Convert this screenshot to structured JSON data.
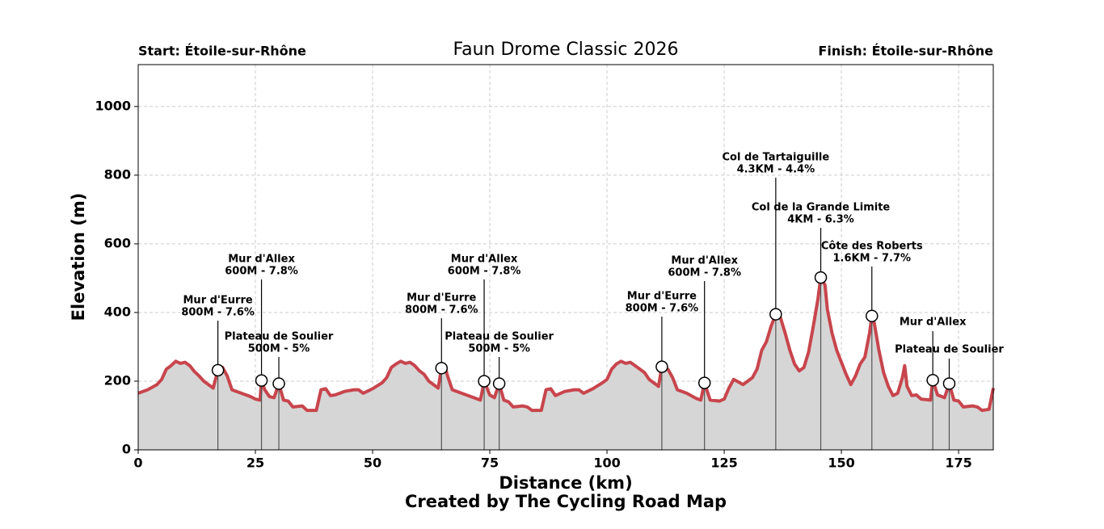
{
  "chart_data": {
    "type": "area",
    "title": "Faun Drome Classic 2026",
    "start_label": "Start: Étoile-sur-Rhône",
    "finish_label": "Finish: Étoile-sur-Rhône",
    "xlabel": "Distance (km)",
    "ylabel": "Elevation (m)",
    "footer": "Created by The Cycling Road Map",
    "color": "#c8454d",
    "fill_color": "#d6d6d6",
    "grid": true,
    "xlim": [
      0,
      182.4
    ],
    "ylim": [
      0,
      1122
    ],
    "xticks": [
      0,
      25,
      50,
      75,
      100,
      125,
      150,
      175
    ],
    "yticks": [
      0,
      200,
      400,
      600,
      800,
      1000
    ],
    "x": [
      0,
      2,
      4,
      5,
      6,
      7,
      8,
      9,
      10,
      11,
      12,
      13,
      14,
      15,
      16,
      17,
      18,
      19,
      20,
      22,
      24,
      25,
      26,
      26.3,
      27,
      28,
      29,
      30,
      31,
      32,
      33,
      35,
      36,
      38,
      39,
      40,
      41,
      42,
      44,
      46,
      47,
      48,
      50,
      52,
      53,
      54,
      55,
      56,
      57,
      58,
      59,
      60,
      61,
      62,
      64,
      64.7,
      65.5,
      66,
      67,
      69,
      71,
      73,
      73.8,
      75,
      76,
      77,
      78,
      79,
      80,
      82,
      83,
      84,
      86,
      87,
      88,
      89,
      91,
      93,
      94,
      95,
      97,
      99,
      100,
      101,
      102,
      103,
      104,
      105,
      106,
      108,
      109,
      111,
      111.7,
      113,
      114,
      115,
      117,
      119,
      120,
      120.8,
      122,
      124,
      125,
      126,
      127,
      128,
      129,
      130,
      131,
      132,
      133,
      134,
      135,
      136,
      137,
      138,
      139,
      140,
      141,
      142,
      143,
      144,
      145,
      145.6,
      146.5,
      147,
      148,
      149,
      150,
      151,
      152,
      153,
      154,
      155,
      156,
      156.5,
      157,
      158,
      159,
      160,
      161,
      162,
      163,
      163.5,
      164,
      165,
      166,
      167,
      169,
      169.5,
      170.5,
      172,
      173,
      174,
      175,
      176,
      178,
      179,
      180,
      181.5,
      182.4
    ],
    "values": [
      165,
      175,
      190,
      205,
      235,
      245,
      258,
      252,
      255,
      245,
      228,
      215,
      200,
      190,
      180,
      232,
      240,
      215,
      175,
      165,
      155,
      148,
      145,
      202,
      175,
      155,
      152,
      193,
      145,
      142,
      125,
      128,
      115,
      115,
      175,
      178,
      158,
      160,
      170,
      175,
      175,
      165,
      178,
      195,
      210,
      240,
      250,
      258,
      252,
      255,
      245,
      230,
      220,
      200,
      180,
      238,
      240,
      215,
      175,
      165,
      155,
      145,
      200,
      160,
      152,
      193,
      145,
      140,
      125,
      128,
      125,
      115,
      115,
      175,
      178,
      158,
      170,
      175,
      175,
      165,
      178,
      195,
      205,
      235,
      250,
      258,
      252,
      255,
      245,
      225,
      205,
      185,
      242,
      235,
      210,
      175,
      165,
      150,
      145,
      195,
      145,
      142,
      148,
      180,
      205,
      198,
      190,
      200,
      210,
      235,
      290,
      315,
      360,
      395,
      385,
      340,
      290,
      250,
      230,
      240,
      285,
      360,
      440,
      502,
      480,
      410,
      340,
      290,
      255,
      220,
      190,
      215,
      250,
      270,
      340,
      390,
      370,
      290,
      225,
      185,
      158,
      165,
      210,
      245,
      185,
      158,
      160,
      148,
      145,
      203,
      160,
      152,
      193,
      145,
      142,
      125,
      128,
      125,
      115,
      118,
      180
    ],
    "climbs": [
      {
        "name": "Mur d'Eurre",
        "detail": "800M - 7.6%",
        "km": 17,
        "elevation": 232
      },
      {
        "name": "Mur d'Allex",
        "detail": "600M - 7.8%",
        "km": 26.3,
        "elevation": 202
      },
      {
        "name": "Plateau de Soulier",
        "detail": "500M - 5%",
        "km": 30,
        "elevation": 193
      },
      {
        "name": "Mur d'Eurre",
        "detail": "800M - 7.6%",
        "km": 64.7,
        "elevation": 238
      },
      {
        "name": "Mur d'Allex",
        "detail": "600M - 7.8%",
        "km": 73.8,
        "elevation": 200
      },
      {
        "name": "Plateau de Soulier",
        "detail": "500M - 5%",
        "km": 77,
        "elevation": 193
      },
      {
        "name": "Mur d'Eurre",
        "detail": "800M - 7.6%",
        "km": 111.7,
        "elevation": 242
      },
      {
        "name": "Mur d'Allex",
        "detail": "600M - 7.8%",
        "km": 120.8,
        "elevation": 195
      },
      {
        "name": "Col de Tartaiguille",
        "detail": "4.3KM - 4.4%",
        "km": 136,
        "elevation": 395
      },
      {
        "name": "Col de la Grande Limite",
        "detail": "4KM - 6.3%",
        "km": 145.6,
        "elevation": 502
      },
      {
        "name": "Côte des Roberts",
        "detail": "1.6KM - 7.7%",
        "km": 156.5,
        "elevation": 390
      },
      {
        "name": "Mur d'Allex",
        "km": 169.5,
        "elevation": 203
      },
      {
        "name": "Plateau de Soulier",
        "km": 173,
        "elevation": 193
      }
    ]
  }
}
